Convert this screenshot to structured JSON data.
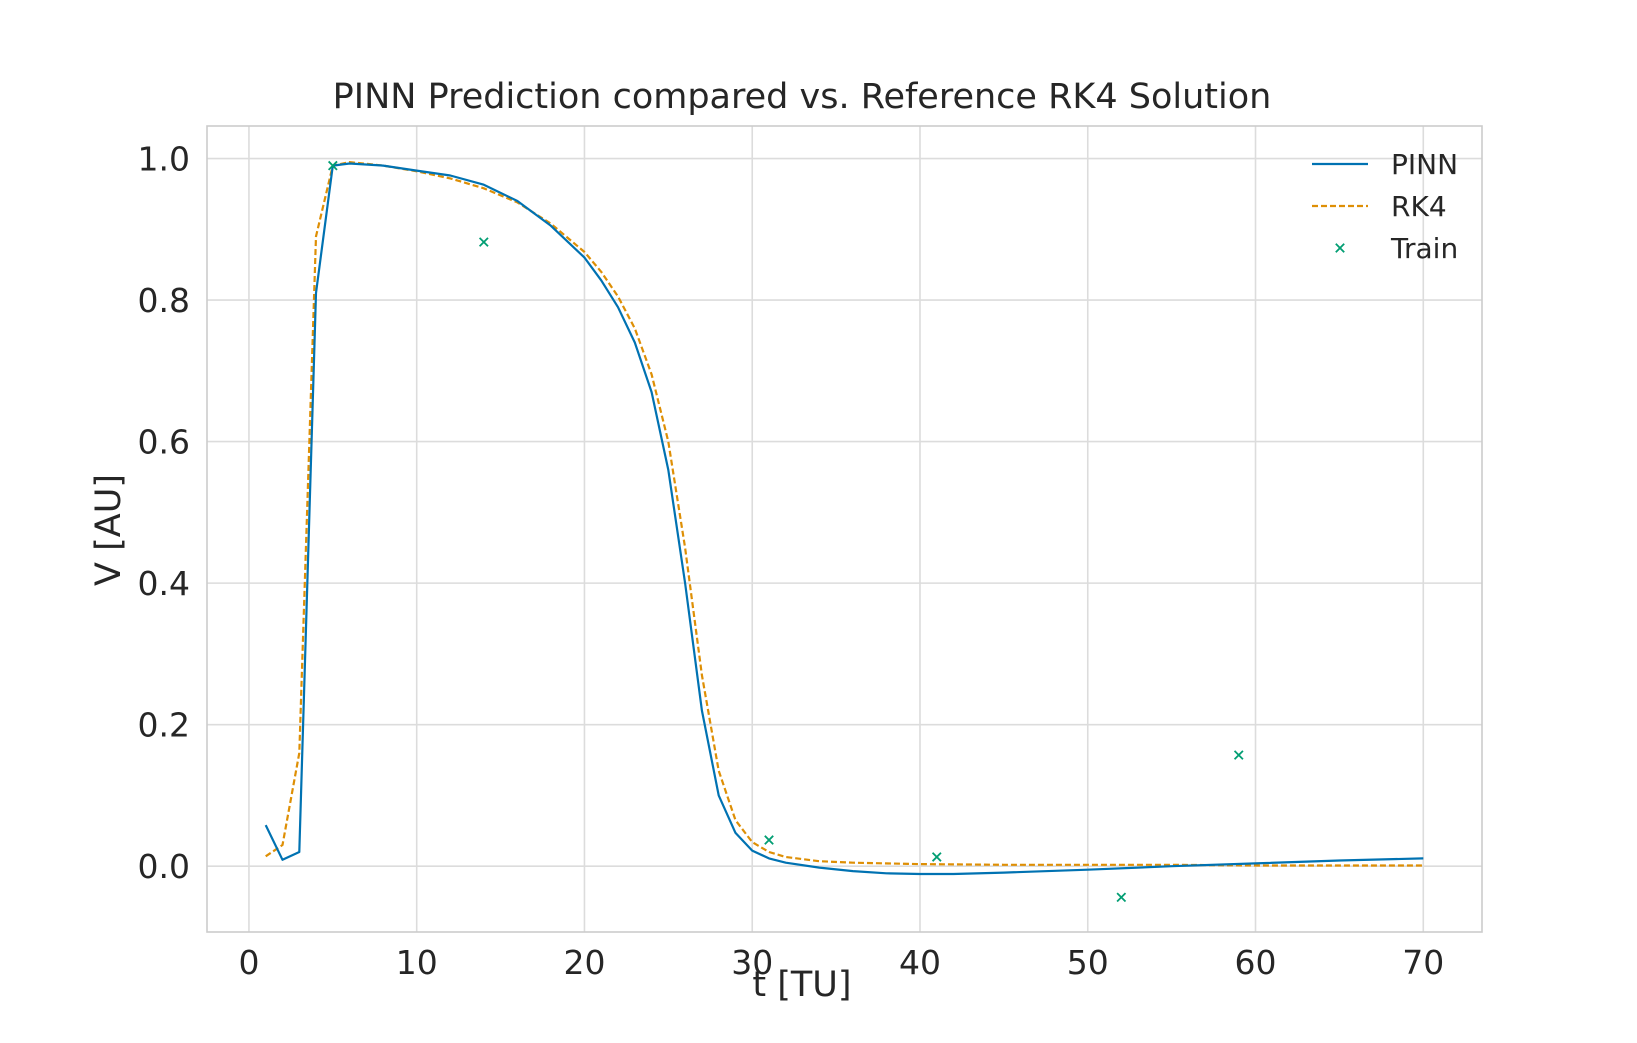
{
  "chart_data": {
    "type": "line",
    "title": "PINN Prediction compared vs. Reference RK4 Solution",
    "xlabel": "t [TU]",
    "ylabel": "V [AU]",
    "xlim": [
      -2.5,
      73.5
    ],
    "ylim": [
      -0.093,
      1.046
    ],
    "xticks": [
      0,
      10,
      20,
      30,
      40,
      50,
      60,
      70
    ],
    "yticks": [
      0.0,
      0.2,
      0.4,
      0.6,
      0.8,
      1.0
    ],
    "ytick_labels": [
      "0.0",
      "0.2",
      "0.4",
      "0.6",
      "0.8",
      "1.0"
    ],
    "grid": true,
    "legend_position": "top-right",
    "series": [
      {
        "name": "PINN",
        "style": "solid",
        "color": "#0072b2",
        "x": [
          1,
          2,
          3,
          4,
          5,
          6,
          8,
          10,
          12,
          14,
          16,
          18,
          20,
          21,
          22,
          23,
          24,
          25,
          26,
          27,
          28,
          29,
          30,
          31,
          32,
          34,
          36,
          38,
          40,
          42,
          45,
          50,
          55,
          60,
          65,
          70
        ],
        "y": [
          0.058,
          0.009,
          0.02,
          0.81,
          0.99,
          0.993,
          0.99,
          0.983,
          0.976,
          0.963,
          0.94,
          0.905,
          0.86,
          0.828,
          0.79,
          0.74,
          0.67,
          0.56,
          0.4,
          0.22,
          0.1,
          0.047,
          0.022,
          0.011,
          0.005,
          -0.002,
          -0.007,
          -0.01,
          -0.011,
          -0.011,
          -0.009,
          -0.005,
          0.0,
          0.004,
          0.008,
          0.011
        ]
      },
      {
        "name": "RK4",
        "style": "dashed",
        "color": "#de8f05",
        "x": [
          1,
          2,
          3,
          4,
          5,
          6,
          8,
          10,
          12,
          14,
          16,
          18,
          20,
          21,
          22,
          23,
          24,
          25,
          26,
          27,
          28,
          29,
          30,
          31,
          32,
          34,
          36,
          40,
          45,
          50,
          55,
          60,
          65,
          70
        ],
        "y": [
          0.014,
          0.03,
          0.16,
          0.89,
          0.99,
          0.995,
          0.99,
          0.982,
          0.972,
          0.958,
          0.938,
          0.908,
          0.868,
          0.84,
          0.805,
          0.76,
          0.695,
          0.6,
          0.45,
          0.27,
          0.135,
          0.065,
          0.034,
          0.02,
          0.013,
          0.007,
          0.005,
          0.003,
          0.002,
          0.002,
          0.002,
          0.001,
          0.001,
          0.001
        ]
      },
      {
        "name": "Train",
        "style": "markers",
        "marker": "x",
        "color": "#029e73",
        "x": [
          5,
          14,
          31,
          41,
          52,
          59
        ],
        "y": [
          0.99,
          0.882,
          0.037,
          0.013,
          -0.044,
          0.157
        ]
      }
    ]
  }
}
